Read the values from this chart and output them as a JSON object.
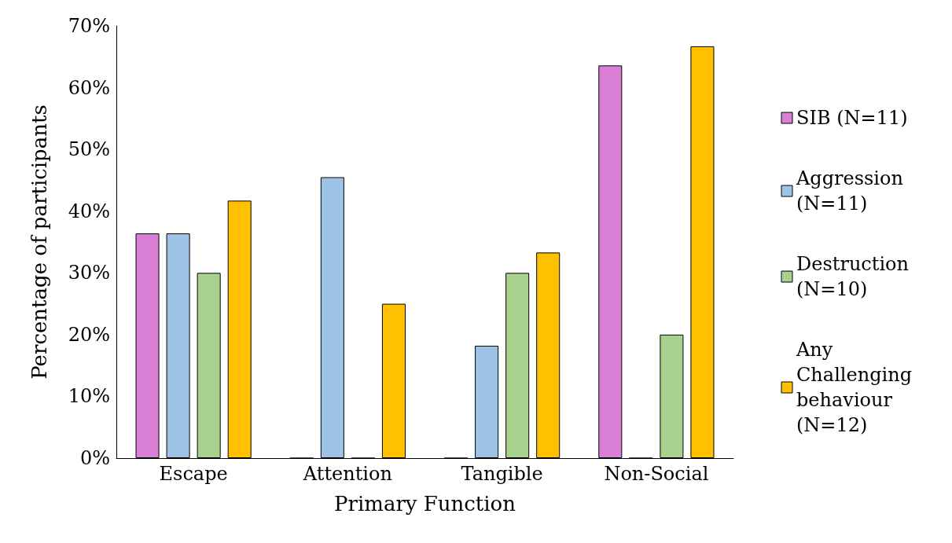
{
  "chart_data": {
    "type": "bar",
    "xlabel": "Primary Function",
    "ylabel": "Percentage of participants",
    "categories": [
      "Escape",
      "Attention",
      "Tangible",
      "Non-Social"
    ],
    "series": [
      {
        "name": "SIB (N=11)",
        "color": "#da7fd6",
        "values": [
          36.4,
          0,
          0,
          63.6
        ]
      },
      {
        "name": "Aggression (N=11)",
        "color": "#9dc3e6",
        "values": [
          36.4,
          45.5,
          18.2,
          0
        ]
      },
      {
        "name": "Destruction (N=10)",
        "color": "#a9d18e",
        "values": [
          30,
          0,
          30,
          20
        ]
      },
      {
        "name": "Any Challenging behaviour (N=12)",
        "color": "#ffc000",
        "values": [
          41.7,
          25,
          33.3,
          66.7
        ]
      }
    ],
    "ylim": [
      0,
      70
    ],
    "yticks": [
      {
        "value": 0,
        "label": "0%"
      },
      {
        "value": 10,
        "label": "10%"
      },
      {
        "value": 20,
        "label": "20%"
      },
      {
        "value": 30,
        "label": "30%"
      },
      {
        "value": 40,
        "label": "40%"
      },
      {
        "value": 50,
        "label": "50%"
      },
      {
        "value": 60,
        "label": "60%"
      },
      {
        "value": 70,
        "label": "70%"
      }
    ],
    "grid": false,
    "legend": "right"
  }
}
